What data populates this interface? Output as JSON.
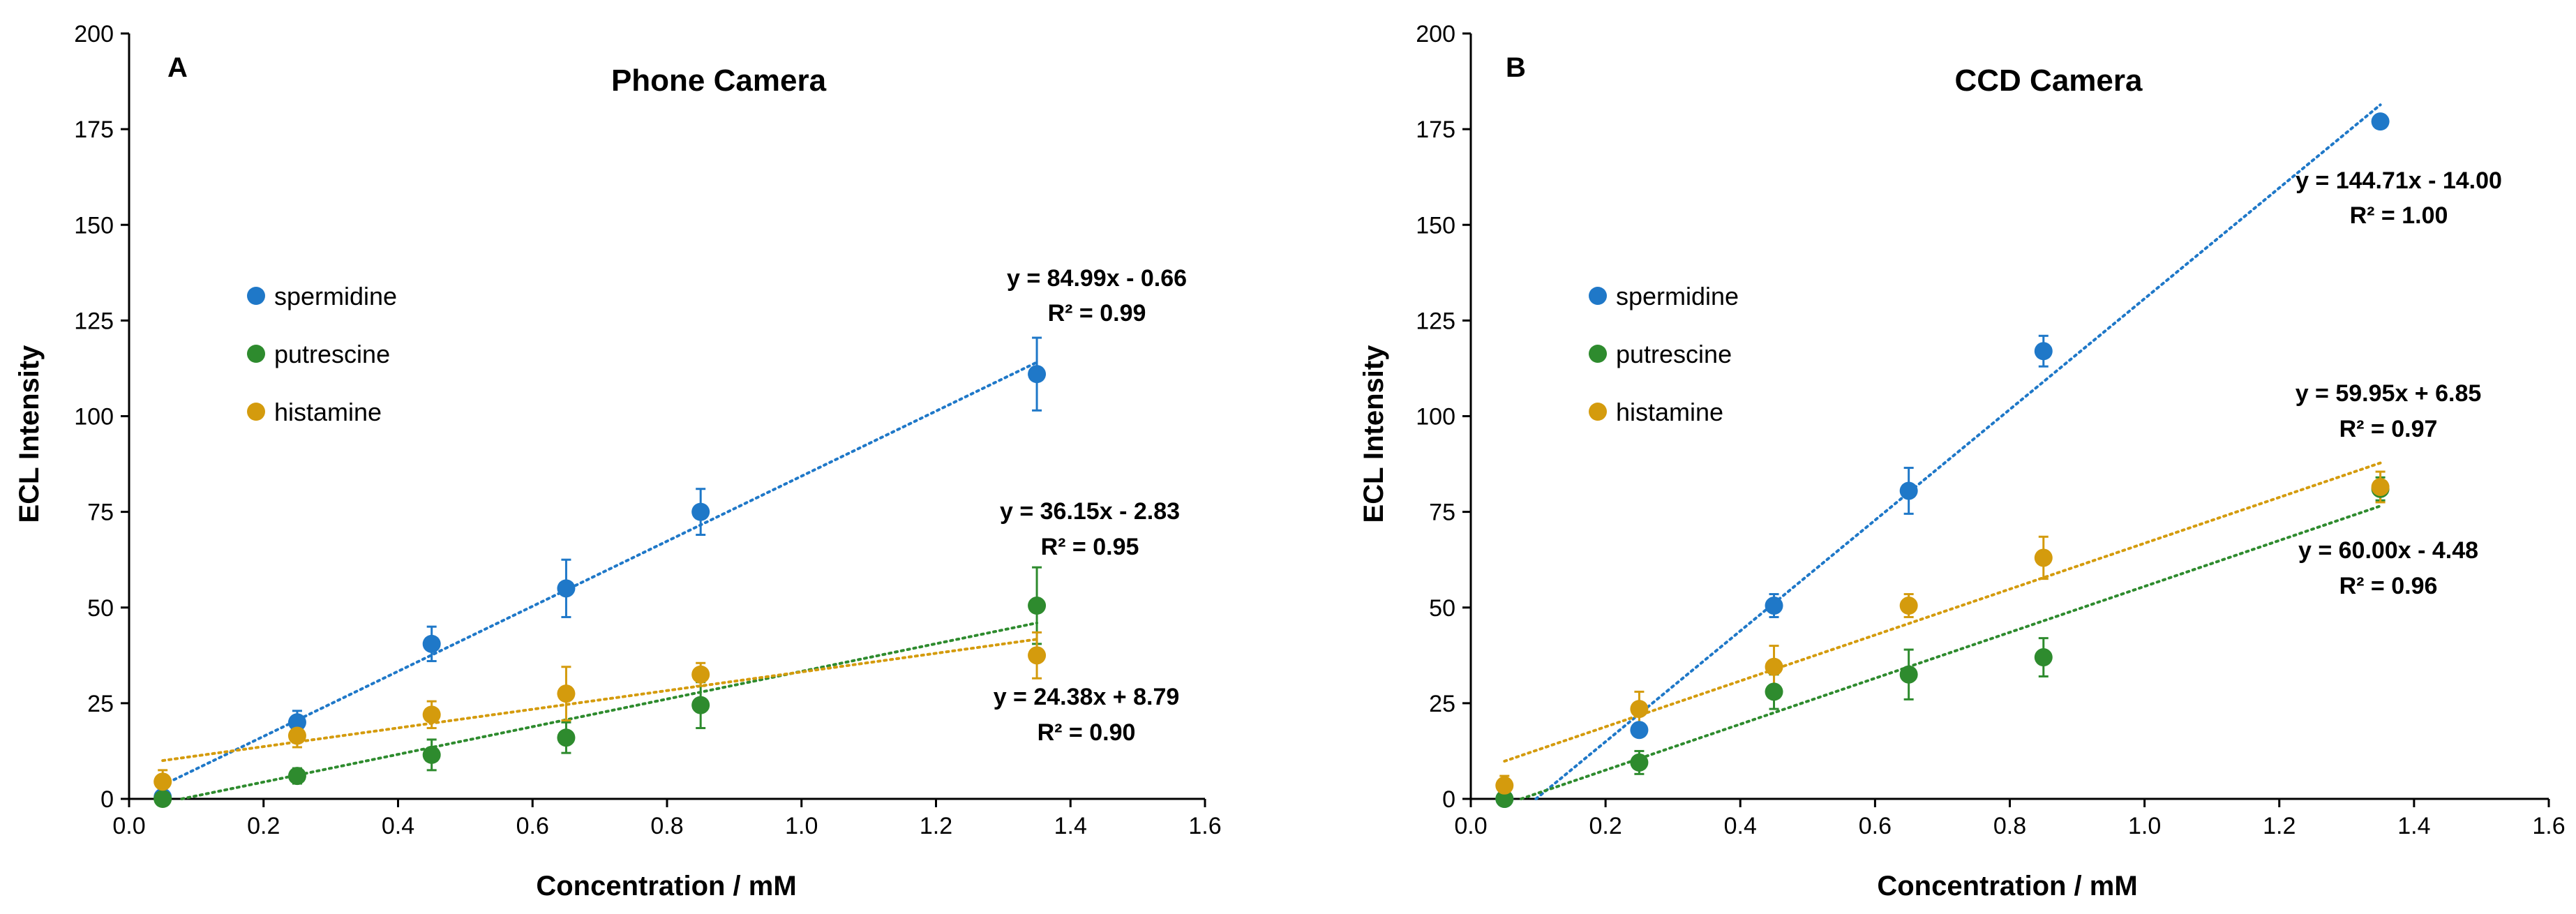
{
  "chart_data": [
    {
      "type": "scatter",
      "panel": "A",
      "title": "Phone Camera",
      "xlabel": "Concentration / mM",
      "ylabel": "ECL Intensity",
      "xlim": [
        0.0,
        1.6
      ],
      "ylim": [
        0,
        200
      ],
      "xticks": [
        0.0,
        0.2,
        0.4,
        0.6,
        0.8,
        1.0,
        1.2,
        1.4,
        1.6
      ],
      "xtick_labels": [
        "0.0",
        "0.2",
        "0.4",
        "0.6",
        "0.8",
        "1.0",
        "1.2",
        "1.4",
        "1.6"
      ],
      "yticks": [
        0,
        25,
        50,
        75,
        100,
        125,
        150,
        175,
        200
      ],
      "ytick_labels": [
        "0",
        "25",
        "50",
        "75",
        "100",
        "125",
        "150",
        "175",
        "200"
      ],
      "grid": false,
      "legend_position": "left",
      "series": [
        {
          "name": "spermidine",
          "color": "#1f78c8",
          "x": [
            0.05,
            0.25,
            0.45,
            0.65,
            0.85,
            1.35
          ],
          "y": [
            0.5,
            20,
            40.5,
            55,
            75,
            111
          ],
          "err": [
            1,
            3,
            4.5,
            7.5,
            6,
            9.5
          ],
          "fit": {
            "slope": 84.99,
            "intercept": -0.66
          },
          "equation": "y = 84.99x - 0.66",
          "r2": "R² = 0.99"
        },
        {
          "name": "putrescine",
          "color": "#2e8b2e",
          "x": [
            0.05,
            0.25,
            0.45,
            0.65,
            0.85,
            1.35
          ],
          "y": [
            0,
            6,
            11.5,
            16,
            24.5,
            50.5
          ],
          "err": [
            0.5,
            2,
            4,
            4,
            6,
            10
          ],
          "fit": {
            "slope": 36.15,
            "intercept": -2.83
          },
          "equation": "y = 36.15x - 2.83",
          "r2": "R² = 0.95"
        },
        {
          "name": "histamine",
          "color": "#d49b0d",
          "x": [
            0.05,
            0.25,
            0.45,
            0.65,
            0.85,
            1.35
          ],
          "y": [
            4.5,
            16.5,
            22,
            27.5,
            32.5,
            37.5
          ],
          "err": [
            3,
            3,
            3.5,
            7,
            3,
            6
          ],
          "fit": {
            "slope": 24.38,
            "intercept": 8.79
          },
          "equation": "y = 24.38x + 8.79",
          "r2": "R² = 0.90"
        }
      ]
    },
    {
      "type": "scatter",
      "panel": "B",
      "title": "CCD Camera",
      "xlabel": "Concentration / mM",
      "ylabel": "ECL Intensity",
      "xlim": [
        0.0,
        1.6
      ],
      "ylim": [
        0,
        200
      ],
      "xticks": [
        0.0,
        0.2,
        0.4,
        0.6,
        0.8,
        1.0,
        1.2,
        1.4,
        1.6
      ],
      "xtick_labels": [
        "0.0",
        "0.2",
        "0.4",
        "0.6",
        "0.8",
        "1.0",
        "1.2",
        "1.4",
        "1.6"
      ],
      "yticks": [
        0,
        25,
        50,
        75,
        100,
        125,
        150,
        175,
        200
      ],
      "ytick_labels": [
        "0",
        "25",
        "50",
        "75",
        "100",
        "125",
        "150",
        "175",
        "200"
      ],
      "grid": false,
      "legend_position": "left",
      "series": [
        {
          "name": "spermidine",
          "color": "#1f78c8",
          "x": [
            0.05,
            0.25,
            0.45,
            0.65,
            0.85,
            1.35
          ],
          "y": [
            0,
            18,
            50.5,
            80.5,
            117,
            177
          ],
          "err": [
            0.5,
            1.5,
            3,
            6,
            4,
            1.5
          ],
          "fit": {
            "slope": 144.71,
            "intercept": -14.0
          },
          "equation": "y = 144.71x - 14.00",
          "r2": "R² = 1.00"
        },
        {
          "name": "putrescine",
          "color": "#2e8b2e",
          "x": [
            0.05,
            0.25,
            0.45,
            0.65,
            0.85,
            1.35
          ],
          "y": [
            0,
            9.5,
            28,
            32.5,
            37,
            81
          ],
          "err": [
            0.5,
            3,
            4.5,
            6.5,
            5,
            3
          ],
          "fit": {
            "slope": 60.0,
            "intercept": -4.48
          },
          "equation": "y = 60.00x - 4.48",
          "r2": "R² = 0.96"
        },
        {
          "name": "histamine",
          "color": "#d49b0d",
          "x": [
            0.05,
            0.25,
            0.45,
            0.65,
            0.85,
            1.35
          ],
          "y": [
            3.5,
            23.5,
            34.5,
            50.5,
            63,
            81.5
          ],
          "err": [
            2.5,
            4.5,
            5.5,
            3,
            5.5,
            4
          ],
          "fit": {
            "slope": 59.95,
            "intercept": 6.85
          },
          "equation": "y = 59.95x + 6.85",
          "r2": "R² = 0.97"
        }
      ]
    }
  ]
}
